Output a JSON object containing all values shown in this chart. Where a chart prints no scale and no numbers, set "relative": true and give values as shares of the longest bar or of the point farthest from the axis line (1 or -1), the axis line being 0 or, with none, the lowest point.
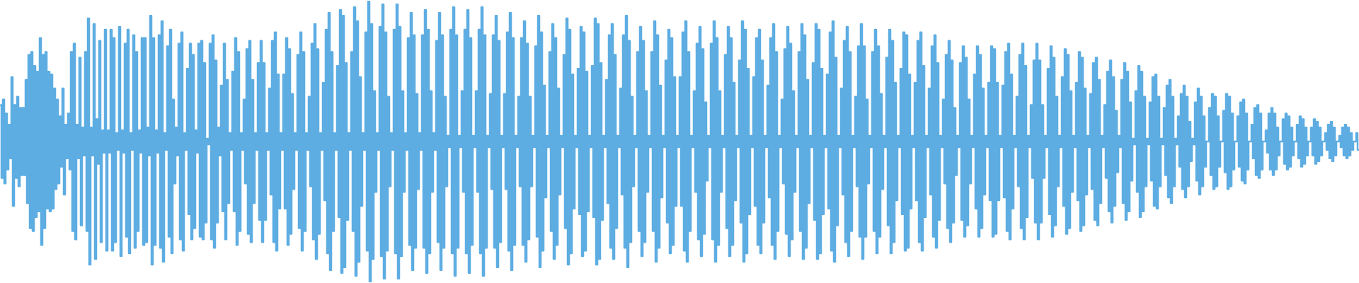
{
  "chart_data": {
    "type": "step",
    "relative": true,
    "categories": [
      null,
      null,
      null,
      null,
      null,
      null,
      null,
      null,
      null,
      null,
      null,
      null,
      null,
      null,
      null,
      null,
      null,
      null,
      null,
      null,
      null,
      null,
      null,
      null,
      null,
      null,
      null,
      null,
      null,
      null,
      null,
      null,
      null,
      null,
      null,
      null,
      null,
      null,
      null,
      null,
      null,
      null,
      null,
      null,
      null,
      null,
      null,
      null,
      null,
      null,
      null,
      null,
      null,
      null,
      null,
      null,
      null,
      null,
      null,
      null,
      null,
      null,
      null,
      null,
      null,
      null,
      null,
      null,
      null,
      null,
      null,
      null,
      null,
      null,
      null,
      null,
      null,
      null,
      null,
      null,
      null,
      null,
      null,
      null,
      null,
      null,
      null,
      null,
      null,
      null,
      null,
      null,
      null,
      null,
      null,
      null,
      null,
      null,
      null,
      null,
      null,
      null,
      null,
      null,
      null,
      null,
      null,
      null,
      null,
      null,
      null,
      null,
      null,
      null,
      null,
      null,
      null,
      null,
      null,
      null,
      null,
      null,
      null,
      null,
      null,
      null,
      null,
      null,
      null,
      null,
      null,
      null,
      null,
      null,
      null,
      null,
      null,
      null,
      null,
      null,
      null,
      null,
      null,
      null,
      null,
      null,
      null,
      null,
      null,
      null,
      null,
      null,
      null,
      null,
      null,
      null,
      null,
      null,
      null,
      null,
      null,
      null,
      null,
      null,
      null,
      null,
      null,
      null,
      null,
      null,
      null,
      null,
      null,
      null,
      null,
      null,
      null,
      null,
      null,
      null,
      null,
      null,
      null,
      null,
      null,
      null,
      null,
      null,
      null,
      null,
      null,
      null,
      null,
      null,
      null,
      null,
      null,
      null,
      null,
      null,
      null,
      null,
      null,
      null,
      null,
      null,
      null,
      null,
      null,
      null,
      null,
      null,
      null,
      null,
      null,
      null,
      null,
      null,
      null,
      null,
      null,
      null,
      null,
      null,
      null,
      null,
      null,
      null,
      null,
      null,
      null,
      null,
      null,
      null,
      null,
      null,
      null,
      null,
      null,
      null,
      null,
      null,
      null,
      null,
      null,
      null,
      null,
      null,
      null,
      null,
      null,
      null,
      null,
      null,
      null,
      null,
      null,
      null,
      null,
      null,
      null,
      null,
      null,
      null,
      null,
      null,
      null,
      null,
      null,
      null,
      null,
      null,
      null,
      null,
      null,
      null,
      null,
      null,
      null,
      null,
      null,
      null,
      null,
      null,
      null,
      null,
      null,
      null,
      null,
      null,
      null,
      null,
      null,
      null,
      null,
      null,
      null,
      null,
      null,
      null,
      null,
      null,
      null,
      null,
      null,
      null,
      null,
      null,
      null,
      null,
      null,
      null,
      null,
      null,
      null,
      null,
      null,
      null,
      null,
      null,
      null,
      null,
      null,
      null,
      null,
      null,
      null,
      null,
      null,
      null,
      null,
      null,
      null,
      null,
      null,
      null,
      null,
      null,
      null,
      null,
      null,
      null,
      null,
      null,
      null,
      null,
      null,
      null,
      null,
      null,
      null,
      null,
      null,
      null,
      null,
      null,
      null,
      null,
      null,
      null,
      null,
      null,
      null,
      null,
      null,
      null,
      null,
      null,
      null,
      null,
      null,
      null,
      null,
      null,
      null,
      null,
      null,
      null,
      null,
      null,
      null,
      null,
      null,
      null,
      null,
      null,
      null,
      null,
      null,
      null,
      null,
      null,
      null,
      null,
      null,
      null,
      null,
      null,
      null,
      null,
      null,
      null,
      null,
      null,
      null,
      null,
      null,
      null,
      null,
      null,
      null,
      null,
      null,
      null,
      null,
      null,
      null,
      null,
      null,
      null,
      null,
      null,
      null,
      null,
      null,
      null,
      null,
      null,
      null,
      null,
      null,
      null,
      null,
      null,
      null,
      null,
      null,
      null,
      null,
      null,
      null,
      null,
      null,
      null,
      null,
      null,
      null,
      null,
      null,
      null,
      null,
      null,
      null,
      null,
      null,
      null,
      null,
      null,
      null,
      null,
      null,
      null,
      null,
      null,
      null,
      null,
      null,
      null,
      null,
      null,
      null,
      null,
      null,
      null,
      null,
      null,
      null,
      null,
      null,
      null,
      null,
      null,
      null,
      null,
      null,
      null,
      null,
      null,
      null,
      null,
      null,
      null,
      null,
      null,
      null,
      null,
      null,
      null,
      null,
      null,
      null,
      null,
      null,
      null,
      null,
      null,
      null,
      null,
      null,
      null,
      null,
      null,
      null,
      null,
      null,
      null,
      null,
      null,
      null,
      null,
      null,
      null,
      null,
      null,
      null,
      null,
      null,
      null,
      null,
      null,
      null,
      null,
      null,
      null,
      null,
      null,
      null,
      null,
      null,
      null,
      null,
      null,
      null,
      null,
      null,
      null,
      null,
      null,
      null,
      null,
      null,
      null,
      null,
      null,
      null,
      null,
      null,
      null,
      null,
      null,
      null,
      null,
      null,
      null,
      null,
      null,
      null,
      null,
      null,
      null,
      null,
      null,
      null,
      null,
      null,
      null,
      null,
      null,
      null,
      null,
      null,
      null,
      null,
      null,
      null,
      null,
      null,
      null,
      null,
      null,
      null,
      null,
      null,
      null,
      null,
      null,
      null,
      null,
      null,
      null,
      null,
      null,
      null,
      null,
      null,
      null,
      null,
      null,
      null,
      null,
      null,
      null,
      null,
      null,
      null,
      null,
      null,
      null,
      null,
      null,
      null,
      null,
      null,
      null,
      null,
      null,
      null,
      null,
      null,
      null,
      null,
      null,
      null,
      null,
      null,
      null,
      null,
      null,
      null,
      null,
      null,
      null,
      null,
      null,
      null,
      null,
      null,
      null,
      null,
      null,
      null,
      null,
      null,
      null,
      null,
      null,
      null,
      null,
      null,
      null,
      null,
      null,
      null,
      null,
      null,
      null,
      null,
      null,
      null,
      null,
      null,
      null,
      null,
      null,
      null,
      null,
      null,
      null,
      null,
      null,
      null,
      null,
      null,
      null,
      null,
      null,
      null,
      null,
      null,
      null,
      null,
      null,
      null,
      null,
      null,
      null,
      null,
      null,
      null,
      null,
      null,
      null,
      null,
      null,
      null,
      null,
      null,
      null,
      null,
      null,
      null,
      null,
      null,
      null,
      null,
      null,
      null,
      null,
      null,
      null,
      null,
      null,
      null,
      null,
      null,
      null,
      null,
      null,
      null,
      null,
      null,
      null,
      null,
      null,
      null,
      null,
      null,
      null,
      null,
      null,
      null,
      null,
      null,
      null,
      null,
      null,
      null,
      null,
      null,
      null,
      null,
      null,
      null,
      null,
      null,
      null,
      null,
      null,
      null,
      null,
      null,
      null,
      null,
      null,
      null,
      null,
      null,
      null,
      null,
      null,
      null,
      null,
      null,
      null,
      null,
      null,
      null,
      null,
      null,
      null,
      null,
      null,
      null,
      null,
      null,
      null,
      null,
      null,
      null,
      null,
      null,
      null,
      null,
      null,
      null,
      null,
      null,
      null,
      null,
      null,
      null,
      null,
      null,
      null,
      null,
      null,
      null,
      null,
      null,
      null,
      null,
      null,
      null,
      null,
      null,
      null,
      null,
      null,
      null,
      null,
      null,
      null,
      null,
      null,
      null,
      null,
      null,
      null,
      null,
      null,
      null,
      null,
      null,
      null,
      null,
      null,
      null,
      null,
      null,
      null,
      null,
      null,
      null,
      null,
      null,
      null,
      null,
      null,
      null,
      null,
      null,
      null,
      null,
      null,
      null,
      null,
      null,
      null,
      null,
      null,
      null,
      null,
      null,
      null,
      null,
      null,
      null,
      null,
      null,
      null,
      null,
      null,
      null,
      null,
      null,
      null,
      null,
      null,
      null,
      null,
      null,
      null,
      null,
      null,
      null,
      null,
      null,
      null,
      null,
      null,
      null,
      null,
      null,
      null,
      null,
      null,
      null,
      null,
      null,
      null,
      null,
      null,
      null,
      null,
      null,
      null,
      null,
      null,
      null,
      null,
      null,
      null,
      null,
      null,
      null,
      null,
      null,
      null,
      null,
      null,
      null,
      null,
      null,
      null,
      null,
      null,
      null,
      null,
      null,
      null,
      null,
      null,
      null,
      null,
      null,
      null,
      null,
      null,
      null,
      null,
      null,
      null,
      null,
      null,
      null,
      null,
      null,
      null,
      null,
      null,
      null,
      null,
      null,
      null,
      null,
      null,
      null,
      null,
      null,
      null
    ],
    "series": [
      {
        "color": "#5dade2",
        "values": [
          0.63,
          0.37,
          0.65,
          0.35,
          0.6,
          0.4,
          0.56,
          0.44,
          0.73,
          0.27,
          0.63,
          0.37,
          0.66,
          0.34,
          0.62,
          0.38,
          0.62,
          0.38,
          0.72,
          0.28,
          0.81,
          0.19,
          0.82,
          0.18,
          0.77,
          0.23,
          0.75,
          0.25,
          0.87,
          0.13,
          0.81,
          0.19,
          0.82,
          0.26,
          0.75,
          0.25,
          0.74,
          0.26,
          0.69,
          0.33,
          0.65,
          0.35,
          0.59,
          0.41,
          0.69,
          0.31,
          0.56,
          0.44,
          0.6,
          0.4,
          0.82,
          0.18,
          0.85,
          0.15,
          0.56,
          0.44,
          0.8,
          0.2,
          0.55,
          0.45,
          0.82,
          0.18,
          0.94,
          0.06,
          0.55,
          0.45,
          0.92,
          0.08,
          0.58,
          0.42,
          0.86,
          0.14,
          0.54,
          0.46,
          0.9,
          0.11,
          0.54,
          0.46,
          0.9,
          0.11,
          0.87,
          0.14,
          0.53,
          0.47,
          0.91,
          0.09,
          0.54,
          0.46,
          0.85,
          0.16,
          0.9,
          0.1,
          0.53,
          0.47,
          0.88,
          0.12,
          0.82,
          0.18,
          0.54,
          0.46,
          0.87,
          0.13,
          0.87,
          0.14,
          0.55,
          0.45,
          0.95,
          0.06,
          0.87,
          0.13,
          0.54,
          0.46,
          0.88,
          0.12,
          0.93,
          0.07,
          0.53,
          0.47,
          0.84,
          0.16,
          0.9,
          0.1,
          0.65,
          0.35,
          0.55,
          0.45,
          0.85,
          0.15,
          0.89,
          0.11,
          0.53,
          0.47,
          0.76,
          0.24,
          0.85,
          0.15,
          0.81,
          0.19,
          0.54,
          0.46,
          0.85,
          0.16,
          0.86,
          0.15,
          0.78,
          0.21,
          0.51,
          0.49,
          0.85,
          0.15,
          0.88,
          0.12,
          0.79,
          0.21,
          0.55,
          0.45,
          0.7,
          0.25,
          0.85,
          0.15,
          0.72,
          0.28,
          0.53,
          0.47,
          0.75,
          0.25,
          0.87,
          0.13,
          0.82,
          0.18,
          0.53,
          0.47,
          0.65,
          0.35,
          0.83,
          0.17,
          0.86,
          0.14,
          0.72,
          0.28,
          0.53,
          0.47,
          0.78,
          0.22,
          0.86,
          0.14,
          0.78,
          0.22,
          0.53,
          0.47,
          0.69,
          0.31,
          0.86,
          0.14,
          0.89,
          0.11,
          0.74,
          0.26,
          0.53,
          0.47,
          0.74,
          0.26,
          0.87,
          0.13,
          0.83,
          0.17,
          0.67,
          0.33,
          0.53,
          0.47,
          0.81,
          0.19,
          0.89,
          0.11,
          0.82,
          0.18,
          0.53,
          0.47,
          0.66,
          0.34,
          0.85,
          0.15,
          0.92,
          0.08,
          0.83,
          0.17,
          0.53,
          0.47,
          0.71,
          0.29,
          0.9,
          0.1,
          0.96,
          0.04,
          0.82,
          0.18,
          0.53,
          0.47,
          0.77,
          0.23,
          0.97,
          0.03,
          0.95,
          0.05,
          0.78,
          0.22,
          0.53,
          0.47,
          0.82,
          0.18,
          0.98,
          0.02,
          0.93,
          0.07,
          0.73,
          0.27,
          0.53,
          0.47,
          0.89,
          0.11,
          1.0,
          0.0,
          0.92,
          0.08,
          0.68,
          0.32,
          0.53,
          0.47,
          0.91,
          0.09,
          0.99,
          0.01,
          0.89,
          0.11,
          0.66,
          0.34,
          0.53,
          0.47,
          0.9,
          0.1,
          0.99,
          0.01,
          0.91,
          0.09,
          0.68,
          0.32,
          0.53,
          0.47,
          0.87,
          0.13,
          0.96,
          0.04,
          0.88,
          0.12,
          0.67,
          0.33,
          0.53,
          0.47,
          0.88,
          0.12,
          0.97,
          0.03,
          0.9,
          0.1,
          0.68,
          0.32,
          0.53,
          0.47,
          0.86,
          0.14,
          0.96,
          0.04,
          0.88,
          0.12,
          0.66,
          0.34,
          0.52,
          0.48,
          0.9,
          0.1,
          0.98,
          0.02,
          0.88,
          0.12,
          0.52,
          0.48,
          0.68,
          0.32,
          0.9,
          0.1,
          0.97,
          0.03,
          0.87,
          0.13,
          0.52,
          0.48,
          0.68,
          0.32,
          0.9,
          0.1,
          0.98,
          0.02,
          0.88,
          0.12,
          0.52,
          0.48,
          0.67,
          0.33,
          0.88,
          0.12,
          0.95,
          0.05,
          0.86,
          0.14,
          0.52,
          0.48,
          0.67,
          0.33,
          0.89,
          0.11,
          0.96,
          0.04,
          0.87,
          0.13,
          0.52,
          0.48,
          0.66,
          0.34,
          0.87,
          0.13,
          0.93,
          0.07,
          0.85,
          0.15,
          0.66,
          0.34,
          0.52,
          0.48,
          0.84,
          0.16,
          0.95,
          0.05,
          0.89,
          0.11,
          0.7,
          0.3,
          0.52,
          0.48,
          0.82,
          0.18,
          0.92,
          0.08,
          0.87,
          0.13,
          0.69,
          0.31,
          0.52,
          0.48,
          0.81,
          0.19,
          0.94,
          0.06,
          0.9,
          0.1,
          0.74,
          0.26,
          0.52,
          0.48,
          0.76,
          0.24,
          0.91,
          0.09,
          0.89,
          0.11,
          0.75,
          0.25,
          0.52,
          0.48,
          0.77,
          0.23,
          0.94,
          0.06,
          0.92,
          0.08,
          0.78,
          0.22,
          0.52,
          0.48,
          0.72,
          0.28,
          0.88,
          0.12,
          0.92,
          0.08,
          0.81,
          0.19,
          0.52,
          0.48,
          0.69,
          0.31,
          0.88,
          0.12,
          0.95,
          0.05,
          0.86,
          0.14,
          0.66,
          0.34,
          0.52,
          0.48,
          0.82,
          0.18,
          0.91,
          0.09,
          0.86,
          0.14,
          0.68,
          0.32,
          0.52,
          0.48,
          0.82,
          0.18,
          0.93,
          0.07,
          0.88,
          0.12,
          0.7,
          0.3,
          0.52,
          0.48,
          0.79,
          0.21,
          0.9,
          0.1,
          0.87,
          0.13,
          0.73,
          0.27,
          0.52,
          0.48,
          0.73,
          0.27,
          0.89,
          0.11,
          0.93,
          0.07,
          0.82,
          0.18,
          0.52,
          0.48,
          0.68,
          0.32,
          0.85,
          0.15,
          0.91,
          0.09,
          0.83,
          0.17,
          0.64,
          0.36,
          0.52,
          0.48,
          0.85,
          0.15,
          0.93,
          0.07,
          0.87,
          0.13,
          0.68,
          0.32,
          0.52,
          0.48,
          0.81,
          0.19,
          0.91,
          0.09,
          0.87,
          0.13,
          0.71,
          0.29,
          0.52,
          0.48,
          0.79,
          0.21,
          0.93,
          0.07,
          0.9,
          0.1,
          0.76,
          0.24,
          0.52,
          0.48,
          0.73,
          0.27,
          0.87,
          0.13,
          0.9,
          0.1,
          0.79,
          0.21,
          0.52,
          0.48,
          0.7,
          0.3,
          0.87,
          0.13,
          0.92,
          0.08,
          0.82,
          0.18,
          0.52,
          0.48,
          0.65,
          0.35,
          0.83,
          0.17,
          0.91,
          0.09,
          0.85,
          0.15,
          0.68,
          0.32,
          0.52,
          0.48,
          0.82,
          0.18,
          0.92,
          0.08,
          0.88,
          0.12,
          0.72,
          0.28,
          0.52,
          0.48,
          0.78,
          0.22,
          0.92,
          0.08,
          0.9,
          0.1,
          0.76,
          0.24,
          0.52,
          0.48,
          0.74,
          0.26,
          0.89,
          0.11,
          0.93,
          0.07,
          0.8,
          0.2,
          0.52,
          0.48,
          0.69,
          0.31,
          0.86,
          0.14,
          0.91,
          0.09,
          0.82,
          0.18,
          0.52,
          0.48,
          0.66,
          0.34,
          0.84,
          0.16,
          0.92,
          0.08,
          0.84,
          0.16,
          0.65,
          0.35,
          0.52,
          0.48,
          0.82,
          0.18,
          0.9,
          0.1,
          0.84,
          0.16,
          0.67,
          0.33,
          0.52,
          0.48,
          0.8,
          0.2,
          0.9,
          0.1,
          0.86,
          0.14,
          0.71,
          0.29,
          0.52,
          0.48,
          0.76,
          0.24,
          0.89,
          0.11,
          0.88,
          0.12,
          0.74,
          0.26,
          0.52,
          0.48,
          0.71,
          0.29,
          0.86,
          0.14,
          0.89,
          0.11,
          0.77,
          0.23,
          0.52,
          0.48,
          0.69,
          0.31,
          0.84,
          0.16,
          0.88,
          0.12,
          0.78,
          0.22,
          0.52,
          0.48,
          0.65,
          0.35,
          0.81,
          0.19,
          0.86,
          0.14,
          0.79,
          0.21,
          0.62,
          0.38,
          0.52,
          0.48,
          0.78,
          0.22,
          0.84,
          0.16,
          0.8,
          0.2,
          0.65,
          0.35,
          0.52,
          0.48,
          0.74,
          0.26,
          0.84,
          0.16,
          0.81,
          0.19,
          0.69,
          0.31,
          0.52,
          0.48,
          0.71,
          0.29,
          0.84,
          0.16,
          0.83,
          0.17,
          0.71,
          0.29,
          0.52,
          0.48,
          0.7,
          0.3,
          0.82,
          0.18,
          0.85,
          0.15,
          0.74,
          0.26,
          0.52,
          0.48,
          0.66,
          0.34,
          0.81,
          0.19,
          0.85,
          0.15,
          0.77,
          0.23,
          0.52,
          0.48,
          0.63,
          0.37,
          0.79,
          0.21,
          0.85,
          0.15,
          0.79,
          0.21,
          0.63,
          0.37,
          0.52,
          0.48,
          0.76,
          0.24,
          0.84,
          0.16,
          0.8,
          0.2,
          0.66,
          0.34,
          0.52,
          0.48,
          0.73,
          0.27,
          0.83,
          0.17,
          0.81,
          0.19,
          0.68,
          0.32,
          0.52,
          0.48,
          0.71,
          0.29,
          0.82,
          0.18,
          0.8,
          0.2,
          0.69,
          0.31,
          0.52,
          0.48,
          0.67,
          0.33,
          0.78,
          0.22,
          0.8,
          0.2,
          0.72,
          0.28,
          0.52,
          0.48,
          0.63,
          0.37,
          0.75,
          0.25,
          0.79,
          0.21,
          0.73,
          0.27,
          0.61,
          0.39,
          0.52,
          0.48,
          0.72,
          0.28,
          0.78,
          0.22,
          0.75,
          0.25,
          0.64,
          0.36,
          0.51,
          0.49,
          0.68,
          0.32,
          0.77,
          0.23,
          0.75,
          0.25,
          0.66,
          0.34,
          0.51,
          0.49,
          0.64,
          0.36,
          0.73,
          0.27,
          0.74,
          0.26,
          0.66,
          0.34,
          0.51,
          0.49,
          0.62,
          0.38,
          0.7,
          0.3,
          0.72,
          0.28,
          0.66,
          0.34,
          0.51,
          0.49,
          0.59,
          0.41,
          0.67,
          0.33,
          0.7,
          0.3,
          0.66,
          0.34,
          0.57,
          0.43,
          0.51,
          0.49,
          0.64,
          0.36,
          0.69,
          0.31,
          0.66,
          0.34,
          0.59,
          0.41,
          0.5,
          0.5,
          0.62,
          0.38,
          0.67,
          0.33,
          0.66,
          0.34,
          0.59,
          0.41,
          0.5,
          0.5,
          0.61,
          0.39,
          0.67,
          0.33,
          0.66,
          0.34,
          0.6,
          0.4,
          0.5,
          0.5,
          0.59,
          0.41,
          0.64,
          0.36,
          0.65,
          0.35,
          0.6,
          0.4,
          0.5,
          0.5,
          0.56,
          0.44,
          0.62,
          0.38,
          0.63,
          0.37,
          0.6,
          0.4,
          0.5,
          0.5,
          0.54,
          0.46,
          0.6,
          0.4,
          0.62,
          0.38,
          0.6,
          0.4,
          0.55,
          0.45,
          0.5,
          0.5,
          0.58,
          0.42,
          0.6,
          0.4,
          0.59,
          0.41,
          0.55,
          0.45,
          0.5,
          0.5,
          0.56,
          0.44,
          0.59,
          0.41,
          0.58,
          0.42,
          0.55,
          0.45,
          0.5,
          0.5,
          0.55,
          0.45,
          0.58,
          0.42,
          0.57,
          0.43,
          0.55,
          0.45,
          0.5,
          0.5,
          0.53,
          0.47,
          0.56,
          0.44,
          0.57,
          0.43,
          0.55,
          0.45,
          0.5,
          0.5,
          0.52,
          0.48,
          0.55,
          0.45,
          0.56,
          0.44,
          0.55,
          0.45,
          0.53,
          0.47,
          0.5,
          0.5,
          0.53,
          0.47
        ]
      }
    ]
  }
}
